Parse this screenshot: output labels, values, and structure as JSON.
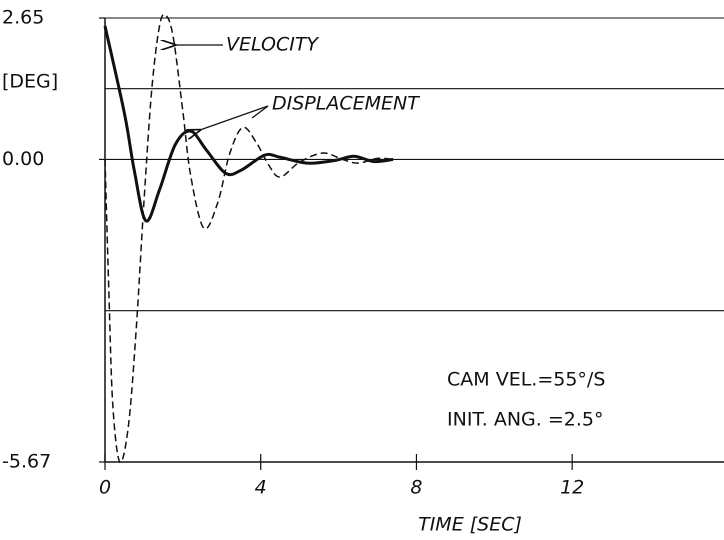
{
  "chart_data": {
    "type": "line",
    "ylabel": "[DEG]",
    "xlabel": "TIME [SEC]",
    "annotations": [
      "VELOCITY",
      "DISPLACEMENT",
      "CAM VEL.=55°/S",
      "INIT. ANG. =2.5°"
    ],
    "xlim": [
      0,
      15.9
    ],
    "xticks": [
      0,
      4,
      8,
      12
    ],
    "ylim": [
      -5.67,
      2.65
    ],
    "yticks": [
      2.65,
      {
        "value": 0,
        "label": "0.00"
      },
      -5.67
    ],
    "ygrid": [
      2.65,
      1.325,
      0,
      -2.835,
      -5.67
    ],
    "grid": true,
    "series": [
      {
        "name": "DISPLACEMENT",
        "color": "#111111",
        "dash": false,
        "x": [
          0,
          0.5,
          0.75,
          1.05,
          1.4,
          1.8,
          2.2,
          2.6,
          3.1,
          3.5,
          4.1,
          4.5,
          5.2,
          5.9,
          6.4,
          6.9,
          7.4
        ],
        "values": [
          2.5,
          0.86,
          -0.2,
          -1.15,
          -0.57,
          0.27,
          0.53,
          0.18,
          -0.26,
          -0.2,
          0.08,
          0.04,
          -0.07,
          -0.02,
          0.06,
          -0.04,
          0
        ]
      },
      {
        "name": "VELOCITY",
        "color": "#111111",
        "dash": true,
        "x": [
          0,
          0.1,
          0.2,
          0.38,
          0.6,
          0.8,
          1.0,
          1.2,
          1.4,
          1.56,
          1.75,
          2.0,
          2.2,
          2.54,
          2.9,
          3.2,
          3.54,
          3.9,
          4.2,
          4.5,
          5.0,
          5.6,
          6.1,
          6.5,
          7.0,
          7.4
        ],
        "values": [
          0,
          -2.5,
          -4.6,
          -5.67,
          -5.0,
          -3.2,
          -0.8,
          1.3,
          2.5,
          2.7,
          2.3,
          0.9,
          -0.3,
          -1.29,
          -0.8,
          0.1,
          0.6,
          0.3,
          -0.1,
          -0.33,
          -0.05,
          0.12,
          0,
          -0.07,
          0.02,
          0
        ]
      }
    ]
  }
}
